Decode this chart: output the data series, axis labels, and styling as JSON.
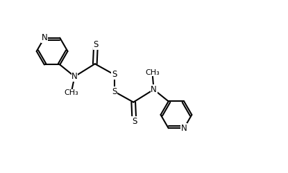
{
  "background_color": "#ffffff",
  "line_color": "#000000",
  "line_width": 1.5,
  "fig_width": 4.15,
  "fig_height": 2.5,
  "dpi": 100,
  "font_size": 8.5,
  "xlim": [
    0,
    10
  ],
  "ylim": [
    0,
    6
  ]
}
